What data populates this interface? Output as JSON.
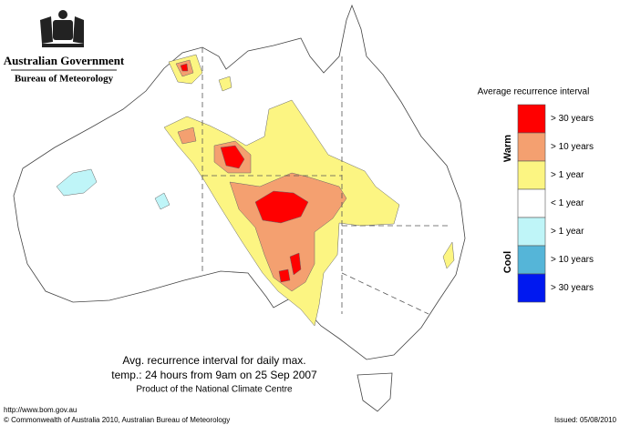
{
  "header": {
    "agency": "Australian Government",
    "bureau": "Bureau of Meteorology"
  },
  "legend": {
    "title": "Average recurrence interval",
    "warm_label": "Warm",
    "cool_label": "Cool",
    "items": [
      {
        "label": "> 30 years",
        "color": "#ff0000"
      },
      {
        "label": "> 10 years",
        "color": "#f4a070"
      },
      {
        "label": "> 1 year",
        "color": "#fcf582"
      },
      {
        "label": "< 1 year",
        "color": "#ffffff"
      },
      {
        "label": "> 1 year",
        "color": "#bff5f8"
      },
      {
        "label": "> 10 years",
        "color": "#55b5d8"
      },
      {
        "label": "> 30 years",
        "color": "#0018f0"
      }
    ]
  },
  "caption": {
    "line1": "Avg. recurrence interval for daily max.",
    "line2": "temp.: 24 hours from 9am on 25 Sep 2007",
    "line3": "Product of the National Climate Centre"
  },
  "footer": {
    "url": "http://www.bom.gov.au",
    "copyright": "© Commonwealth of Australia 2010, Australian Bureau of Meteorology",
    "issued": "Issued: 05/08/2010"
  }
}
